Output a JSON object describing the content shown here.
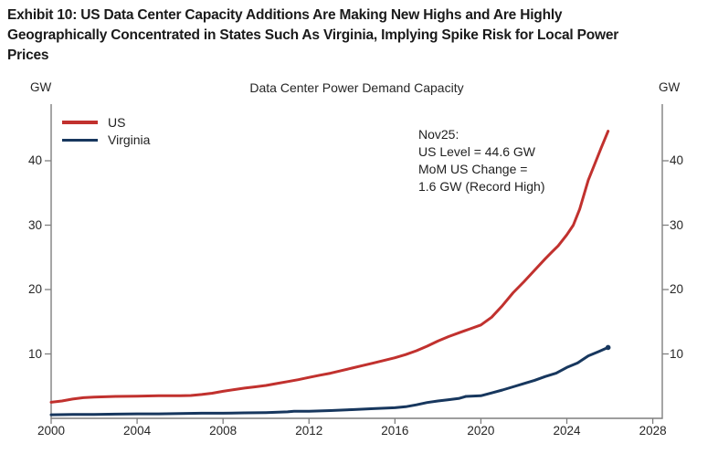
{
  "header": {
    "title_lines": [
      "Exhibit 10: US Data Center Capacity Additions Are Making New Highs and Are Highly",
      "Geographically Concentrated in States Such As Virginia, Implying Spike Risk for Local Power",
      "Prices"
    ]
  },
  "chart": {
    "title": "Data Center Power Demand Capacity",
    "left_axis_unit": "GW",
    "right_axis_unit": "GW",
    "annotation_lines": [
      "Nov25:",
      "US Level = 44.6 GW",
      "MoM US Change =",
      "1.6 GW (Record High)"
    ]
  },
  "colors": {
    "us_line": "#c1312e",
    "virginia_line": "#17375e",
    "axis": "#7f7f7f",
    "text": "#262626"
  },
  "chart_data": {
    "type": "line",
    "title": "Data Center Power Demand Capacity",
    "xlabel": "",
    "ylabel": "GW",
    "xlim": [
      2000,
      2028.4
    ],
    "ylim": [
      0,
      48.8
    ],
    "x_ticks": [
      2000,
      2004,
      2008,
      2012,
      2016,
      2020,
      2024,
      2028
    ],
    "y_ticks": [
      10,
      20,
      30,
      40
    ],
    "grid": false,
    "legend_position": "top-left",
    "dual_y_axis": true,
    "annotation": "Nov25: US Level = 44.6 GW; MoM US Change = 1.6 GW (Record High)",
    "series": [
      {
        "name": "US",
        "color": "#c1312e",
        "points": [
          [
            2000,
            2.5
          ],
          [
            2000.5,
            2.7
          ],
          [
            2001,
            3.0
          ],
          [
            2001.5,
            3.2
          ],
          [
            2002,
            3.3
          ],
          [
            2002.5,
            3.35
          ],
          [
            2003,
            3.4
          ],
          [
            2004,
            3.45
          ],
          [
            2005,
            3.5
          ],
          [
            2006,
            3.5
          ],
          [
            2006.5,
            3.55
          ],
          [
            2007,
            3.7
          ],
          [
            2007.5,
            3.9
          ],
          [
            2008,
            4.2
          ],
          [
            2008.5,
            4.45
          ],
          [
            2009,
            4.7
          ],
          [
            2009.5,
            4.9
          ],
          [
            2010,
            5.1
          ],
          [
            2010.5,
            5.4
          ],
          [
            2011,
            5.7
          ],
          [
            2011.5,
            6.0
          ],
          [
            2012,
            6.35
          ],
          [
            2012.5,
            6.7
          ],
          [
            2013,
            7.0
          ],
          [
            2013.5,
            7.4
          ],
          [
            2014,
            7.8
          ],
          [
            2014.5,
            8.2
          ],
          [
            2015,
            8.6
          ],
          [
            2015.5,
            9.0
          ],
          [
            2016,
            9.4
          ],
          [
            2016.5,
            9.9
          ],
          [
            2017,
            10.5
          ],
          [
            2017.5,
            11.2
          ],
          [
            2018,
            12.0
          ],
          [
            2018.5,
            12.7
          ],
          [
            2019,
            13.3
          ],
          [
            2019.5,
            13.9
          ],
          [
            2020,
            14.5
          ],
          [
            2020.5,
            15.7
          ],
          [
            2021,
            17.5
          ],
          [
            2021.5,
            19.5
          ],
          [
            2022,
            21.2
          ],
          [
            2022.5,
            23.0
          ],
          [
            2023,
            24.8
          ],
          [
            2023.3,
            25.8
          ],
          [
            2023.6,
            26.8
          ],
          [
            2024,
            28.5
          ],
          [
            2024.3,
            30.0
          ],
          [
            2024.6,
            32.5
          ],
          [
            2025,
            37.0
          ],
          [
            2025.3,
            39.5
          ],
          [
            2025.6,
            42.0
          ],
          [
            2025.92,
            44.6
          ]
        ]
      },
      {
        "name": "Virginia",
        "color": "#17375e",
        "end_marker": true,
        "points": [
          [
            2000,
            0.55
          ],
          [
            2001,
            0.6
          ],
          [
            2002,
            0.6
          ],
          [
            2003,
            0.65
          ],
          [
            2004,
            0.7
          ],
          [
            2005,
            0.7
          ],
          [
            2006,
            0.75
          ],
          [
            2007,
            0.8
          ],
          [
            2008,
            0.8
          ],
          [
            2009,
            0.85
          ],
          [
            2010,
            0.9
          ],
          [
            2011,
            1.0
          ],
          [
            2011.3,
            1.1
          ],
          [
            2012,
            1.1
          ],
          [
            2013,
            1.2
          ],
          [
            2014,
            1.35
          ],
          [
            2015,
            1.5
          ],
          [
            2016,
            1.65
          ],
          [
            2016.5,
            1.8
          ],
          [
            2017,
            2.1
          ],
          [
            2017.5,
            2.45
          ],
          [
            2018,
            2.7
          ],
          [
            2018.5,
            2.9
          ],
          [
            2019,
            3.1
          ],
          [
            2019.3,
            3.4
          ],
          [
            2020,
            3.5
          ],
          [
            2020.5,
            3.95
          ],
          [
            2021,
            4.4
          ],
          [
            2021.5,
            4.9
          ],
          [
            2022,
            5.4
          ],
          [
            2022.5,
            5.9
          ],
          [
            2023,
            6.5
          ],
          [
            2023.5,
            7.0
          ],
          [
            2024,
            7.9
          ],
          [
            2024.5,
            8.6
          ],
          [
            2025,
            9.7
          ],
          [
            2025.5,
            10.4
          ],
          [
            2025.92,
            11.0
          ]
        ]
      }
    ]
  }
}
